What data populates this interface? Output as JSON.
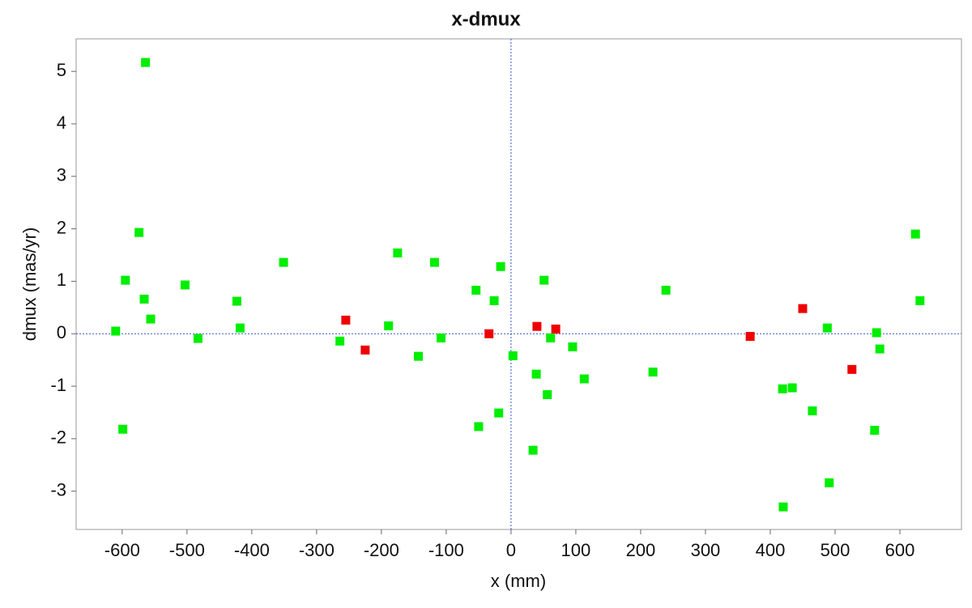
{
  "chart_data": {
    "type": "scatter",
    "title": "x-dmux",
    "x_label": "x (mm)",
    "y_label": "dmux (mas/yr)",
    "xlim": [
      -671,
      695
    ],
    "ylim": [
      -3.73,
      5.62
    ],
    "xticks": [
      -600,
      -500,
      -400,
      -300,
      -200,
      -100,
      0,
      100,
      200,
      300,
      400,
      500,
      600
    ],
    "yticks": [
      -3,
      -2,
      -1,
      0,
      1,
      2,
      3,
      4,
      5
    ],
    "zero_lines": true,
    "zero_line_color": "#3355cc",
    "series": [
      {
        "color": "#00ee00",
        "x": [
          -610,
          -564,
          -595,
          -574,
          -566,
          -556,
          -599,
          -503,
          -483,
          -423,
          -418,
          -351,
          -264,
          -189,
          -175,
          -143,
          -118,
          -108,
          -54,
          -50,
          -26,
          -16,
          -19,
          3,
          34,
          39,
          51,
          56,
          61,
          95,
          113,
          219,
          239,
          419,
          434,
          420,
          465,
          488,
          491,
          564,
          569,
          561,
          624,
          631
        ],
        "values": [
          0.05,
          5.17,
          1.02,
          1.93,
          0.66,
          0.28,
          -1.82,
          0.93,
          -0.09,
          0.62,
          0.11,
          1.36,
          -0.14,
          0.15,
          1.54,
          -0.43,
          1.36,
          -0.08,
          0.83,
          -1.77,
          0.63,
          1.28,
          -1.51,
          -0.42,
          -2.22,
          -0.77,
          1.02,
          -1.16,
          -0.08,
          -0.25,
          -0.86,
          -0.73,
          0.83,
          -1.05,
          -1.03,
          -3.3,
          -1.47,
          0.11,
          -2.84,
          0.02,
          -0.29,
          -1.84,
          1.9,
          0.63
        ]
      },
      {
        "color": "#ee0000",
        "x": [
          -255,
          -225,
          -34,
          40,
          69,
          369,
          450,
          526
        ],
        "values": [
          0.26,
          -0.31,
          0.0,
          0.14,
          0.09,
          -0.05,
          0.48,
          -0.68
        ]
      }
    ]
  }
}
